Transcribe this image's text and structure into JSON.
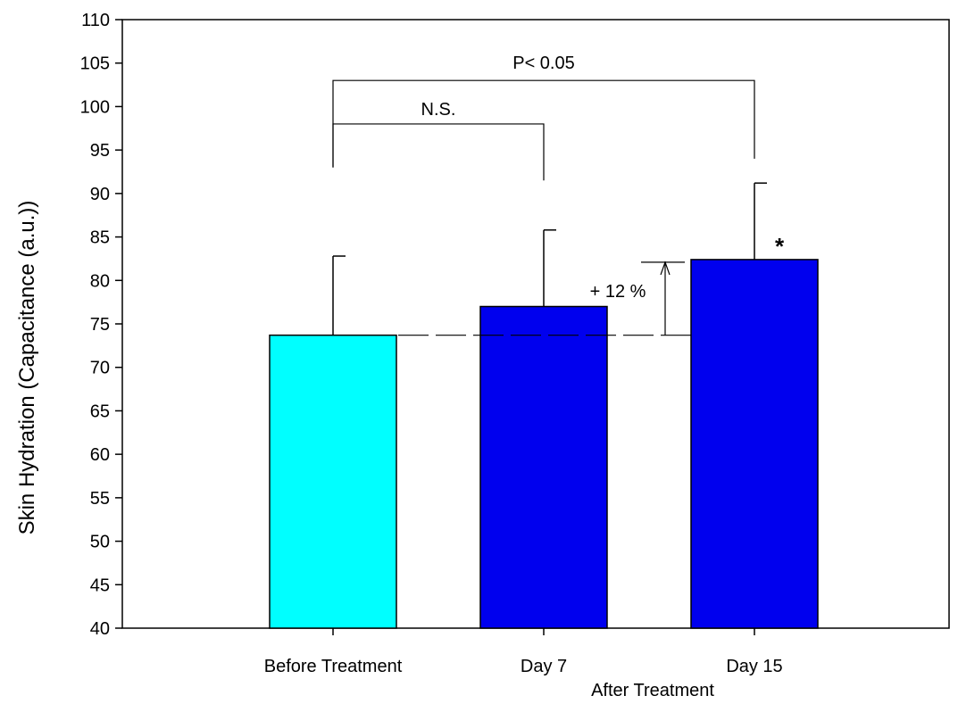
{
  "chart_data": {
    "type": "bar",
    "categories": [
      "Before Treatment",
      "Day 7",
      "Day 15"
    ],
    "values": [
      73.7,
      77.0,
      82.4
    ],
    "errors": [
      9.1,
      8.8,
      8.8
    ],
    "bar_colors": [
      "#00FFFF",
      "#0000EE",
      "#0000EE"
    ],
    "xlabel": "",
    "ylabel": "Skin Hydration (Capacitance (a.u.))",
    "ylim": [
      40,
      110
    ],
    "yticks": [
      40,
      45,
      50,
      55,
      60,
      65,
      70,
      75,
      80,
      85,
      90,
      95,
      100,
      105,
      110
    ],
    "grid": false,
    "group_label": "After Treatment",
    "annotations": {
      "ns_label": "N.S.",
      "ns_bracket_y": 98,
      "p_label": "P< 0.05",
      "p_bracket_y": 103,
      "pct_label": "+ 12 %",
      "significance_marker": "*",
      "reference_line_value": 73.7
    }
  }
}
